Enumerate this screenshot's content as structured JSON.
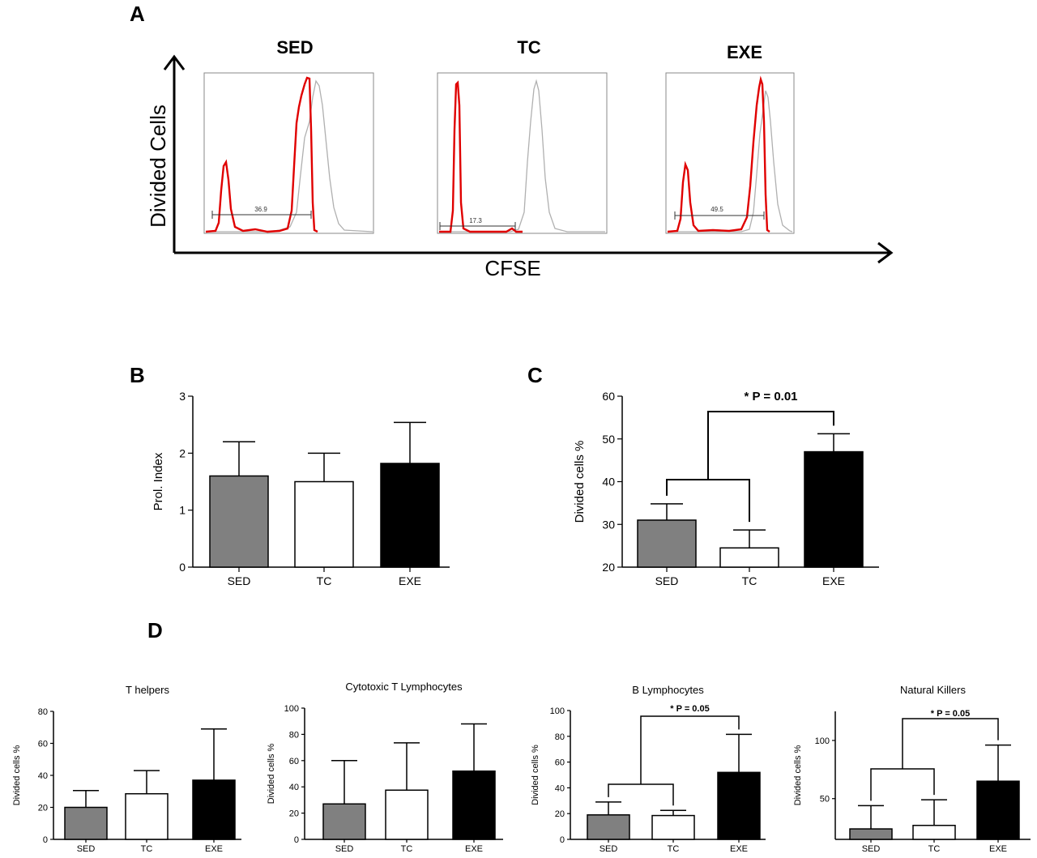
{
  "panel_labels": {
    "a": "A",
    "b": "B",
    "c": "C",
    "d": "D"
  },
  "panel_a": {
    "y_label": "Divided Cells",
    "x_label": "CFSE",
    "histograms": [
      {
        "title": "SED",
        "gate_value": "36.9"
      },
      {
        "title": "TC",
        "gate_value": "17.3"
      },
      {
        "title": "EXE",
        "gate_value": "49.5"
      }
    ]
  },
  "colors": {
    "SED": "#808080",
    "TC": "#ffffff",
    "EXE": "#000000",
    "stained": "#e00000",
    "control": "#b0b0b0"
  },
  "chart_data": [
    {
      "id": "B",
      "type": "bar",
      "categories": [
        "SED",
        "TC",
        "EXE"
      ],
      "values": [
        1.6,
        1.5,
        1.82
      ],
      "errors": [
        0.6,
        0.5,
        0.72
      ],
      "ylabel": "Prol. Index",
      "ylim": [
        0,
        3
      ],
      "yticks": [
        0,
        1,
        2,
        3
      ]
    },
    {
      "id": "C",
      "type": "bar",
      "categories": [
        "SED",
        "TC",
        "EXE"
      ],
      "values": [
        31,
        24.5,
        47
      ],
      "errors": [
        3.8,
        4.2,
        4.2
      ],
      "ylabel": "Divided cells %",
      "ylim": [
        20,
        60
      ],
      "yticks": [
        20,
        30,
        40,
        50,
        60
      ],
      "annotation": "* P = 0.01"
    },
    {
      "id": "D1",
      "type": "bar",
      "title": "T helpers",
      "categories": [
        "SED",
        "TC",
        "EXE"
      ],
      "values": [
        20,
        28.5,
        37
      ],
      "errors": [
        10.5,
        14.5,
        32
      ],
      "ylabel": "Divided cells %",
      "ylim": [
        0,
        80
      ],
      "yticks": [
        0,
        20,
        40,
        60,
        80
      ]
    },
    {
      "id": "D2",
      "type": "bar",
      "title": "Cytotoxic T Lymphocytes",
      "categories": [
        "SED",
        "TC",
        "EXE"
      ],
      "values": [
        27,
        37.5,
        52
      ],
      "errors": [
        33,
        36,
        36
      ],
      "ylabel": "Divided cells %",
      "ylim": [
        0,
        100
      ],
      "yticks": [
        0,
        20,
        40,
        60,
        80,
        100
      ]
    },
    {
      "id": "D3",
      "type": "bar",
      "title": "B Lymphocytes",
      "categories": [
        "SED",
        "TC",
        "EXE"
      ],
      "values": [
        19,
        18.5,
        52
      ],
      "errors": [
        10,
        4,
        29.5
      ],
      "ylabel": "Divided cells %",
      "ylim": [
        0,
        100
      ],
      "yticks": [
        0,
        20,
        40,
        60,
        80,
        100
      ],
      "annotation": "* P = 0.05"
    },
    {
      "id": "D4",
      "type": "bar",
      "title": "Natural Killers",
      "categories": [
        "SED",
        "TC",
        "EXE"
      ],
      "values": [
        24,
        27,
        65
      ],
      "errors": [
        20,
        22,
        31
      ],
      "ylabel": "Divided cells %",
      "ylim": [
        15,
        125
      ],
      "yticks": [
        50,
        100
      ],
      "annotation": "* P = 0.05"
    }
  ]
}
